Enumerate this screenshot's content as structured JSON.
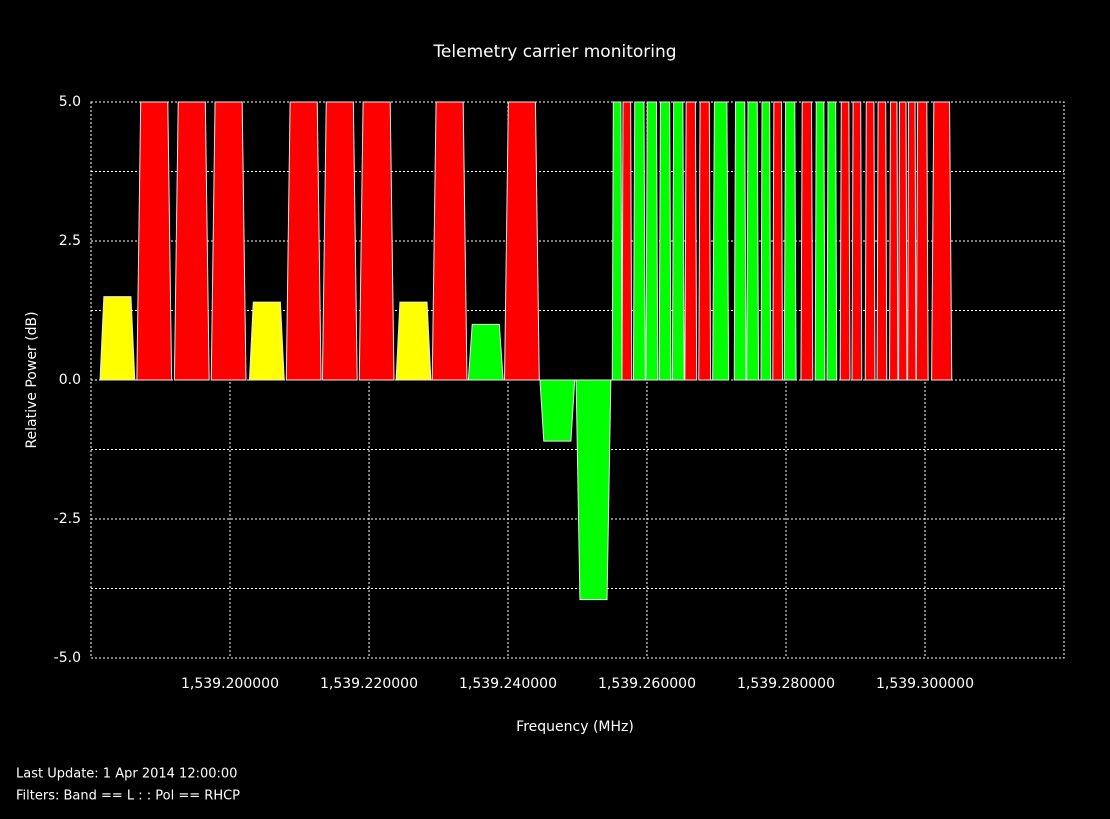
{
  "chart_data": {
    "type": "bar",
    "title": "Telemetry carrier monitoring",
    "x_label": "Frequency (MHz)",
    "y_label": "Relative Power (dB)",
    "x": [
      1539.1838,
      1539.1891,
      1539.1945,
      1539.1998,
      1539.2053,
      1539.2106,
      1539.2158,
      1539.2211,
      1539.2264,
      1539.2316,
      1539.2368,
      1539.242,
      1539.2471,
      1539.2523,
      1539.2557,
      1539.2571,
      1539.2589,
      1539.2607,
      1539.2626,
      1539.2645,
      1539.2663,
      1539.2683,
      1539.2706,
      1539.2734,
      1539.2752,
      1539.2771,
      1539.2788,
      1539.2806,
      1539.283,
      1539.2849,
      1539.2866,
      1539.2885,
      1539.2902,
      1539.2921,
      1539.2938,
      1539.2955,
      1539.2968,
      1539.2981,
      1539.2996,
      1539.3024
    ],
    "values": [
      1.5,
      5,
      5,
      5,
      1.4,
      5,
      5,
      5,
      1.4,
      5,
      1.0,
      5,
      -1.1,
      -3.95,
      5,
      5,
      5,
      5,
      5,
      5,
      5,
      5,
      5,
      5,
      5,
      5,
      5,
      5,
      5,
      5,
      5,
      5,
      5,
      5,
      5,
      5,
      5,
      5,
      5,
      5
    ],
    "widths": [
      0.005,
      0.005,
      0.005,
      0.005,
      0.005,
      0.005,
      0.005,
      0.005,
      0.005,
      0.005,
      0.005,
      0.005,
      0.005,
      0.005,
      0.0014,
      0.0014,
      0.0017,
      0.0017,
      0.0017,
      0.0017,
      0.0017,
      0.0017,
      0.0023,
      0.0017,
      0.0017,
      0.0014,
      0.0014,
      0.0017,
      0.0017,
      0.0014,
      0.0014,
      0.0014,
      0.0014,
      0.0014,
      0.0014,
      0.0012,
      0.0012,
      0.0012,
      0.0017,
      0.0029
    ],
    "colors": [
      "#ffff00",
      "#ff0000",
      "#ff0000",
      "#ff0000",
      "#ffff00",
      "#ff0000",
      "#ff0000",
      "#ff0000",
      "#ffff00",
      "#ff0000",
      "#00ff00",
      "#ff0000",
      "#00ff00",
      "#00ff00",
      "#00ff00",
      "#ff0000",
      "#00ff00",
      "#00ff00",
      "#00ff00",
      "#00ff00",
      "#ff0000",
      "#ff0000",
      "#00ff00",
      "#00ff00",
      "#00ff00",
      "#00ff00",
      "#ff0000",
      "#00ff00",
      "#ff0000",
      "#00ff00",
      "#00ff00",
      "#ff0000",
      "#ff0000",
      "#ff0000",
      "#ff0000",
      "#ff0000",
      "#ff0000",
      "#ff0000",
      "#ff0000",
      "#ff0000"
    ],
    "xlim": [
      1539.18,
      1539.32
    ],
    "xticks": [
      {
        "value": 1539.2,
        "label": "1,539.200000"
      },
      {
        "value": 1539.22,
        "label": "1,539.220000"
      },
      {
        "value": 1539.24,
        "label": "1,539.240000"
      },
      {
        "value": 1539.26,
        "label": "1,539.260000"
      },
      {
        "value": 1539.28,
        "label": "1,539.280000"
      },
      {
        "value": 1539.3,
        "label": "1,539.300000"
      }
    ],
    "ylim": [
      -5,
      5
    ],
    "yticks": [
      {
        "value": -5,
        "label": "-5.0"
      },
      {
        "value": -2.5,
        "label": "-2.5"
      },
      {
        "value": 0,
        "label": "0.0"
      },
      {
        "value": 2.5,
        "label": "2.5"
      },
      {
        "value": 5,
        "label": "5.0"
      }
    ],
    "grid": true
  },
  "footer": {
    "last_update": "Last Update: 1 Apr 2014 12:00:00",
    "filters": "Filters: Band == L : : Pol == RHCP"
  }
}
